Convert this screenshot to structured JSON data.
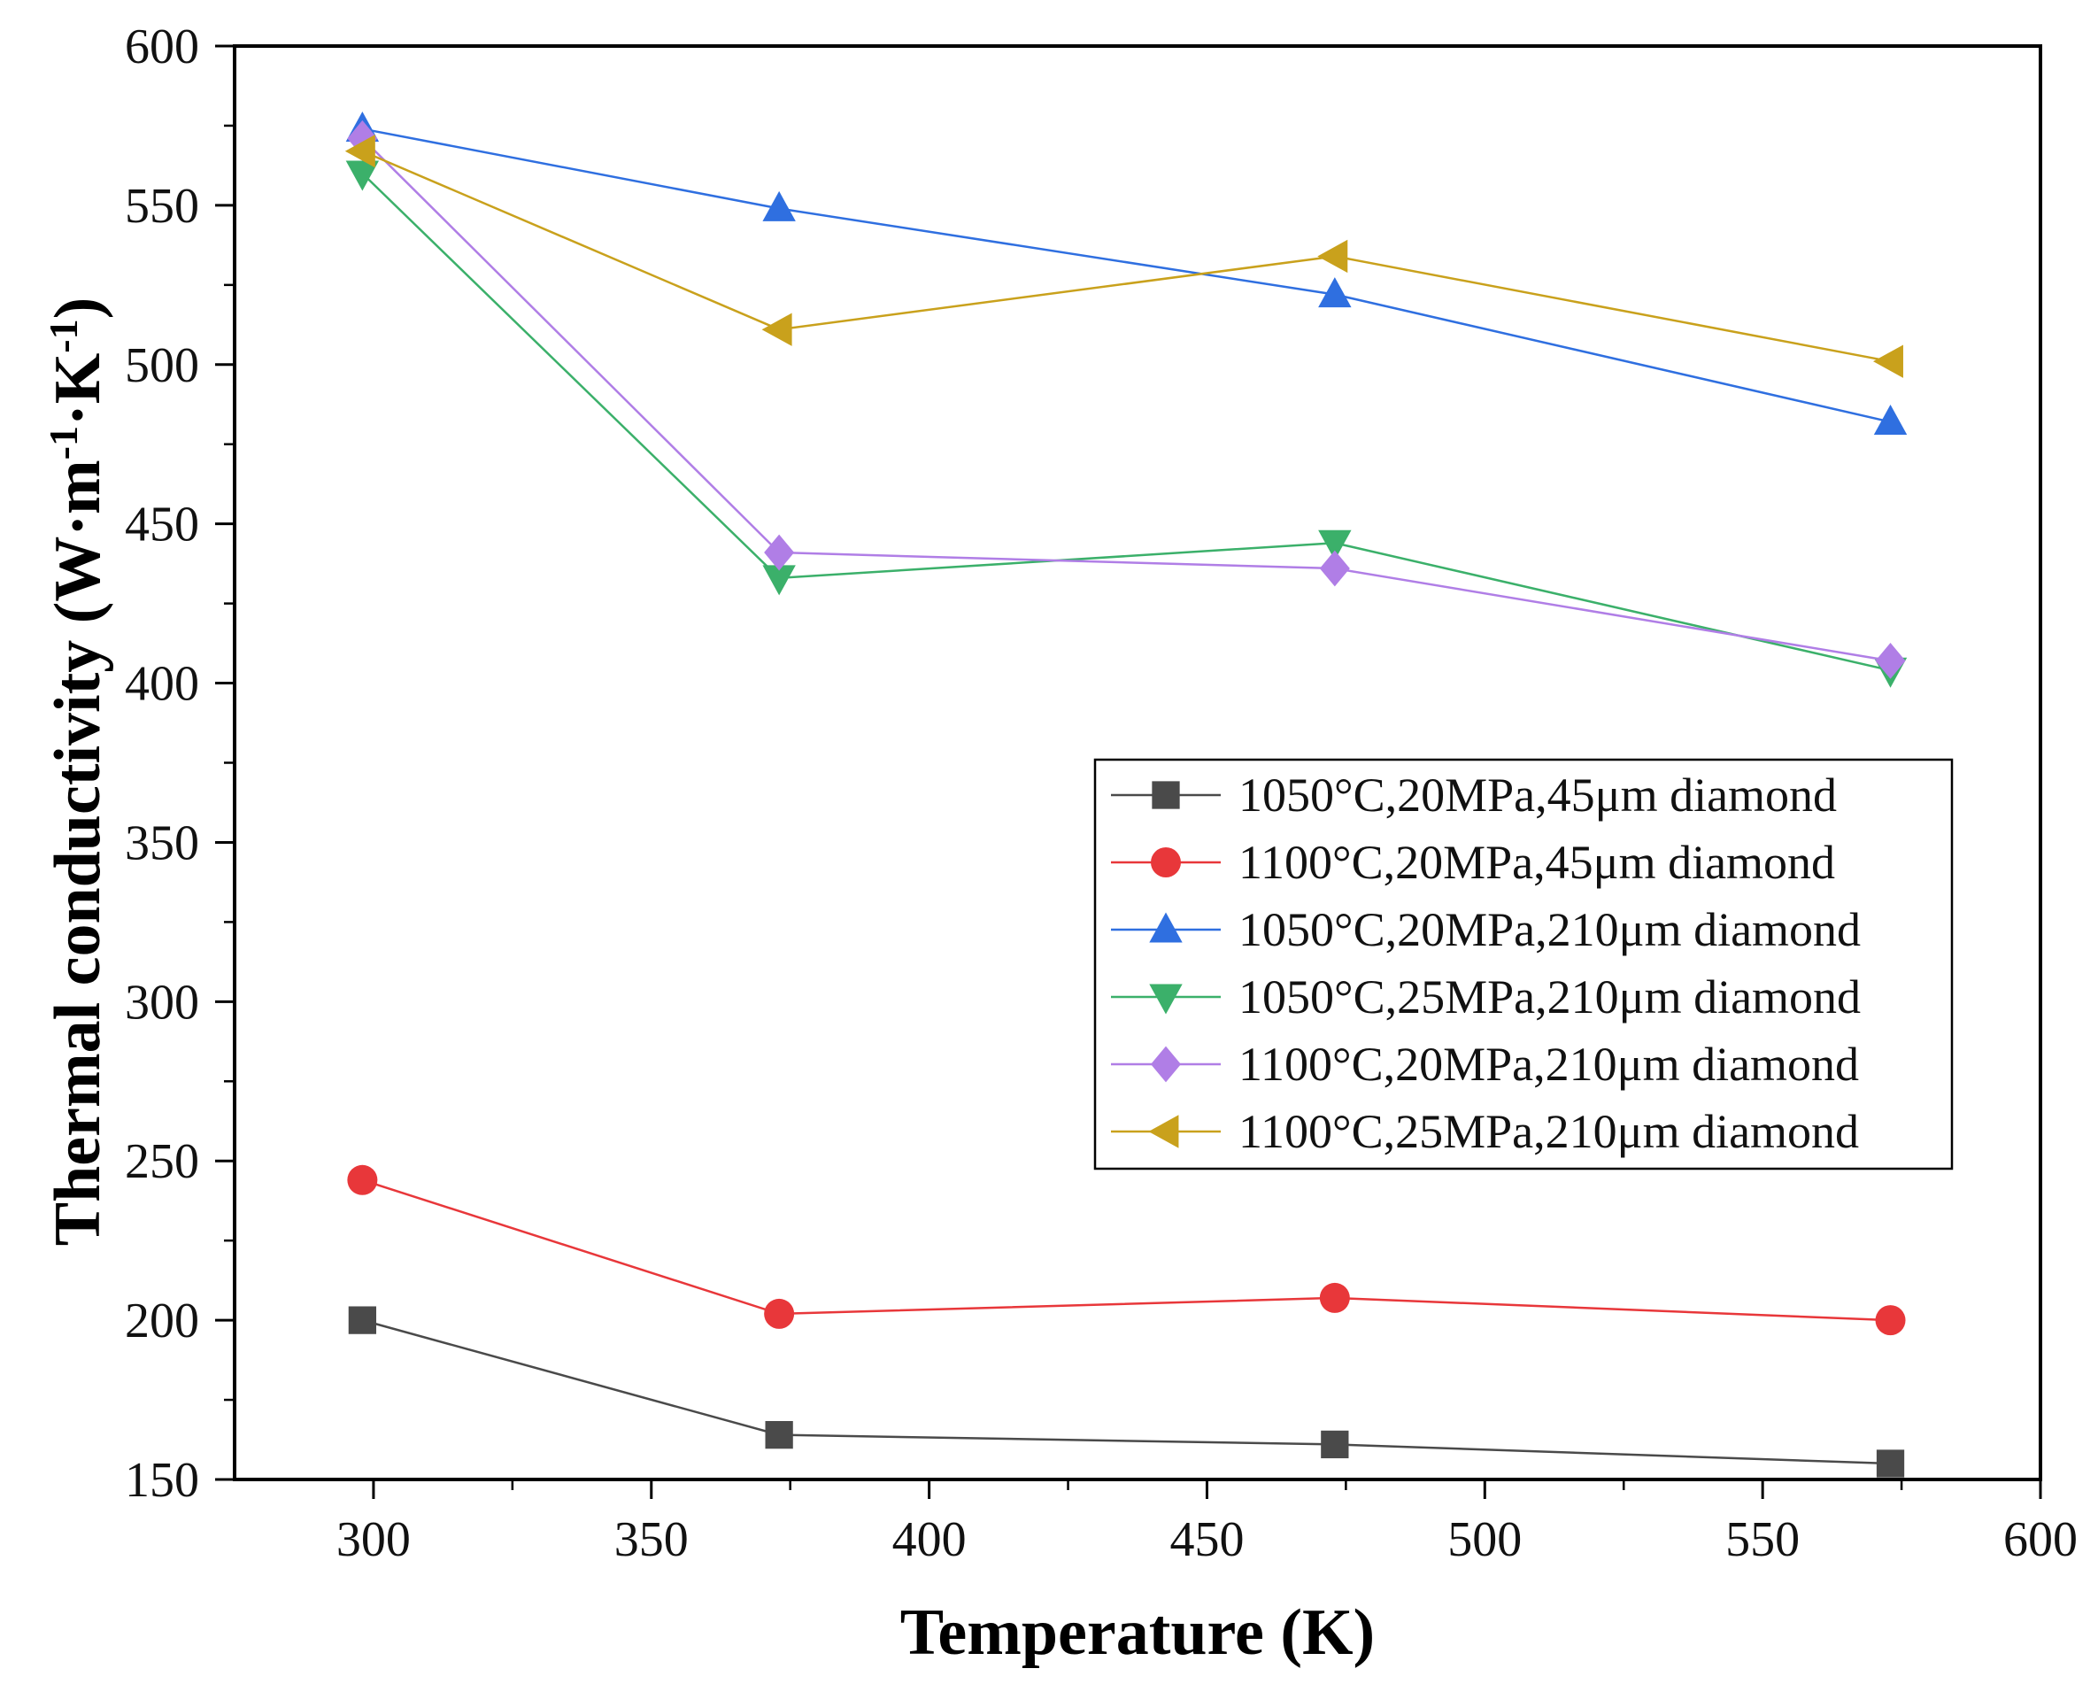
{
  "chart_data": {
    "type": "line",
    "title": "",
    "xlabel": "Temperature (K)",
    "ylabel": "Thermal conductivity (W·m-1·K-1)",
    "ylabel_parts": {
      "prefix": "Thermal conductivity (W·m",
      "sup1": "-1",
      "middle": "·K",
      "sup2": "-1",
      "suffix": ")"
    },
    "xlim": [
      275,
      600
    ],
    "ylim": [
      150,
      600
    ],
    "xticks": [
      300,
      350,
      400,
      450,
      500,
      550,
      600
    ],
    "yticks": [
      150,
      200,
      250,
      300,
      350,
      400,
      450,
      500,
      550,
      600
    ],
    "x": [
      298,
      373,
      473,
      573
    ],
    "legend_position": "center-right",
    "series": [
      {
        "name": "1050°C,20MPa,45μm diamond",
        "color": "#4a4a4a",
        "marker": "square",
        "values": [
          200,
          164,
          161,
          155
        ]
      },
      {
        "name": "1100°C,20MPa,45μm diamond",
        "color": "#e8373a",
        "marker": "circle",
        "values": [
          244,
          202,
          207,
          200
        ]
      },
      {
        "name": "1050°C,20MPa,210μm diamond",
        "color": "#2f6fe0",
        "marker": "triangle-up",
        "values": [
          574,
          549,
          522,
          482
        ]
      },
      {
        "name": "1050°C,25MPa,210μm diamond",
        "color": "#3bb06a",
        "marker": "triangle-down",
        "values": [
          560,
          433,
          444,
          404
        ]
      },
      {
        "name": "1100°C,20MPa,210μm diamond",
        "color": "#b07ee6",
        "marker": "diamond",
        "values": [
          571,
          441,
          436,
          407
        ]
      },
      {
        "name": "1100°C,25MPa,210μm diamond",
        "color": "#c9a11c",
        "marker": "triangle-left",
        "values": [
          567,
          511,
          534,
          501
        ]
      }
    ]
  }
}
